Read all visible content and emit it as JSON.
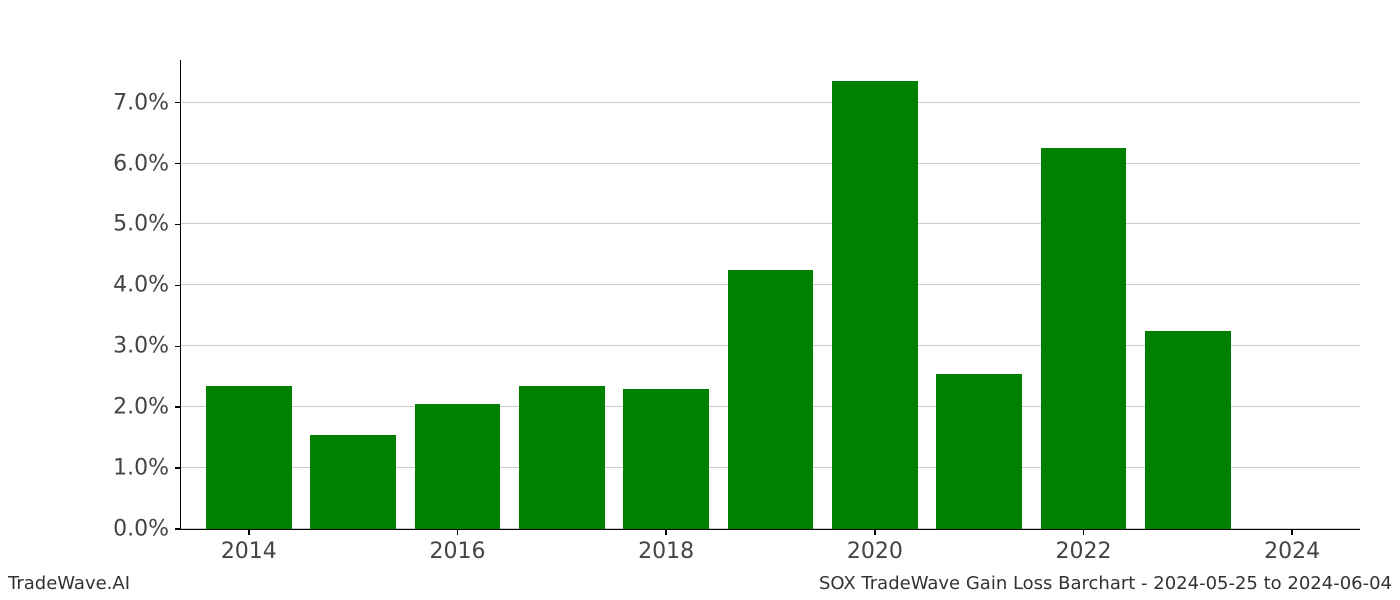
{
  "chart": {
    "type": "bar",
    "years": [
      2014,
      2015,
      2016,
      2017,
      2018,
      2019,
      2020,
      2021,
      2022,
      2023,
      2024
    ],
    "values": [
      2.35,
      1.55,
      2.05,
      2.35,
      2.3,
      4.25,
      7.35,
      2.55,
      6.25,
      3.25,
      0.0
    ],
    "bar_color": "#008000",
    "background_color": "#ffffff",
    "grid_color": "#cccccc",
    "axis_color": "#000000",
    "tick_label_color": "#444444",
    "tick_fontsize": 22,
    "x_range": [
      2013.35,
      2024.65
    ],
    "y_range": [
      0.0,
      7.7
    ],
    "y_ticks": [
      0.0,
      1.0,
      2.0,
      3.0,
      4.0,
      5.0,
      6.0,
      7.0
    ],
    "y_tick_labels": [
      "0.0%",
      "1.0%",
      "2.0%",
      "3.0%",
      "4.0%",
      "5.0%",
      "6.0%",
      "7.0%"
    ],
    "x_ticks": [
      2014,
      2016,
      2018,
      2020,
      2022,
      2024
    ],
    "x_tick_labels": [
      "2014",
      "2016",
      "2018",
      "2020",
      "2022",
      "2024"
    ],
    "bar_width_years": 0.82
  },
  "footer": {
    "left": "TradeWave.AI",
    "right": "SOX TradeWave Gain Loss Barchart - 2024-05-25 to 2024-06-04",
    "fontsize": 18,
    "color": "#333333"
  }
}
